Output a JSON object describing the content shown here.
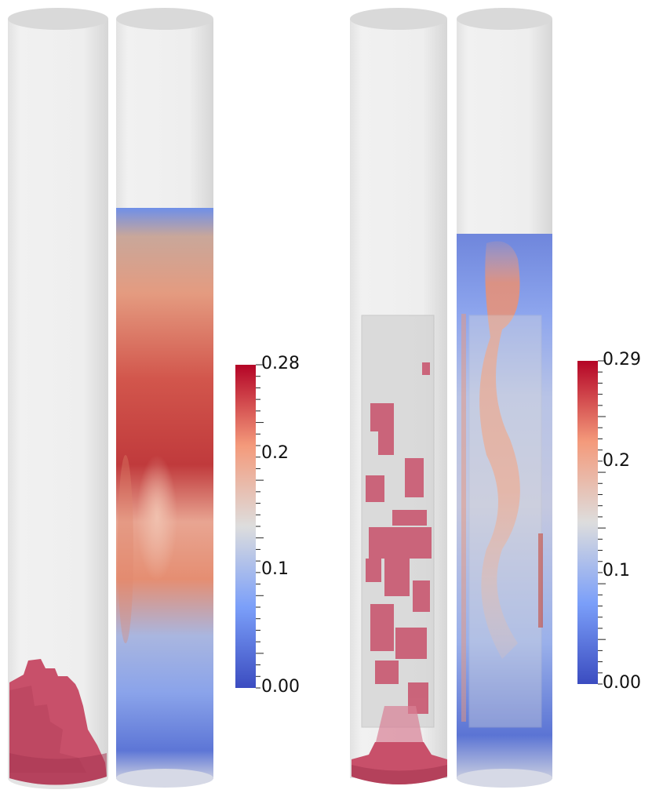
{
  "colorbar_left": {
    "max_label": "0.28",
    "tick_labels": [
      "0.2",
      "0.1"
    ],
    "min_label": "0.00"
  },
  "colorbar_right": {
    "max_label": "0.29",
    "tick_labels": [
      "0.2",
      "0.1"
    ],
    "min_label": "0.00"
  },
  "colors": {
    "cold": "#3b4cc0",
    "neutral": "#dddddd",
    "hot": "#b40426",
    "solid": "#c8506a",
    "cylinder": "#ececec"
  }
}
